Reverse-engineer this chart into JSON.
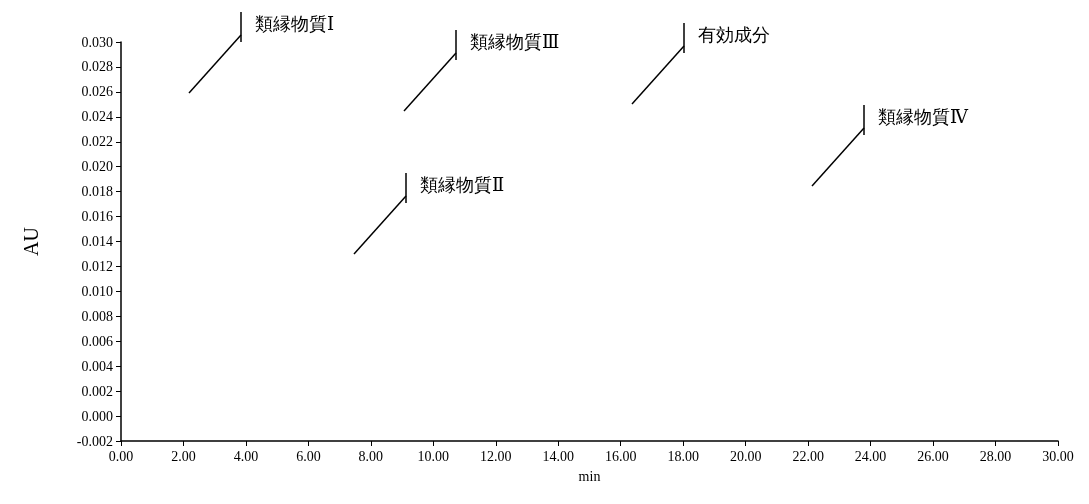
{
  "chart_data": {
    "type": "line",
    "xlabel": "min",
    "ylabel": "AU",
    "xlim": [
      0,
      30
    ],
    "xticks": [
      {
        "value": 0,
        "label": "0.00"
      },
      {
        "value": 2,
        "label": "2.00"
      },
      {
        "value": 4,
        "label": "4.00"
      },
      {
        "value": 6,
        "label": "6.00"
      },
      {
        "value": 8,
        "label": "8.00"
      },
      {
        "value": 10,
        "label": "10.00"
      },
      {
        "value": 12,
        "label": "12.00"
      },
      {
        "value": 14,
        "label": "14.00"
      },
      {
        "value": 16,
        "label": "16.00"
      },
      {
        "value": 18,
        "label": "18.00"
      },
      {
        "value": 20,
        "label": "20.00"
      },
      {
        "value": 22,
        "label": "22.00"
      },
      {
        "value": 24,
        "label": "24.00"
      },
      {
        "value": 26,
        "label": "26.00"
      },
      {
        "value": 28,
        "label": "28.00"
      },
      {
        "value": 30,
        "label": "30.00"
      }
    ],
    "ylim": [
      -0.002,
      0.03
    ],
    "yticks": [
      {
        "value": -0.002,
        "label": "-0.002"
      },
      {
        "value": 0,
        "label": "0.000"
      },
      {
        "value": 0.002,
        "label": "0.002"
      },
      {
        "value": 0.004,
        "label": "0.004"
      },
      {
        "value": 0.006,
        "label": "0.006"
      },
      {
        "value": 0.008,
        "label": "0.008"
      },
      {
        "value": 0.01,
        "label": "0.010"
      },
      {
        "value": 0.012,
        "label": "0.012"
      },
      {
        "value": 0.014,
        "label": "0.014"
      },
      {
        "value": 0.016,
        "label": "0.016"
      },
      {
        "value": 0.018,
        "label": "0.018"
      },
      {
        "value": 0.02,
        "label": "0.020"
      },
      {
        "value": 0.022,
        "label": "0.022"
      },
      {
        "value": 0.024,
        "label": "0.024"
      },
      {
        "value": 0.026,
        "label": "0.026"
      },
      {
        "value": 0.028,
        "label": "0.028"
      },
      {
        "value": 0.03,
        "label": "0.030"
      }
    ],
    "annotations": [
      "類縁物質Ⅰ",
      "類縁物質Ⅱ",
      "類縁物質Ⅲ",
      "有効成分",
      "類縁物質Ⅳ"
    ]
  }
}
